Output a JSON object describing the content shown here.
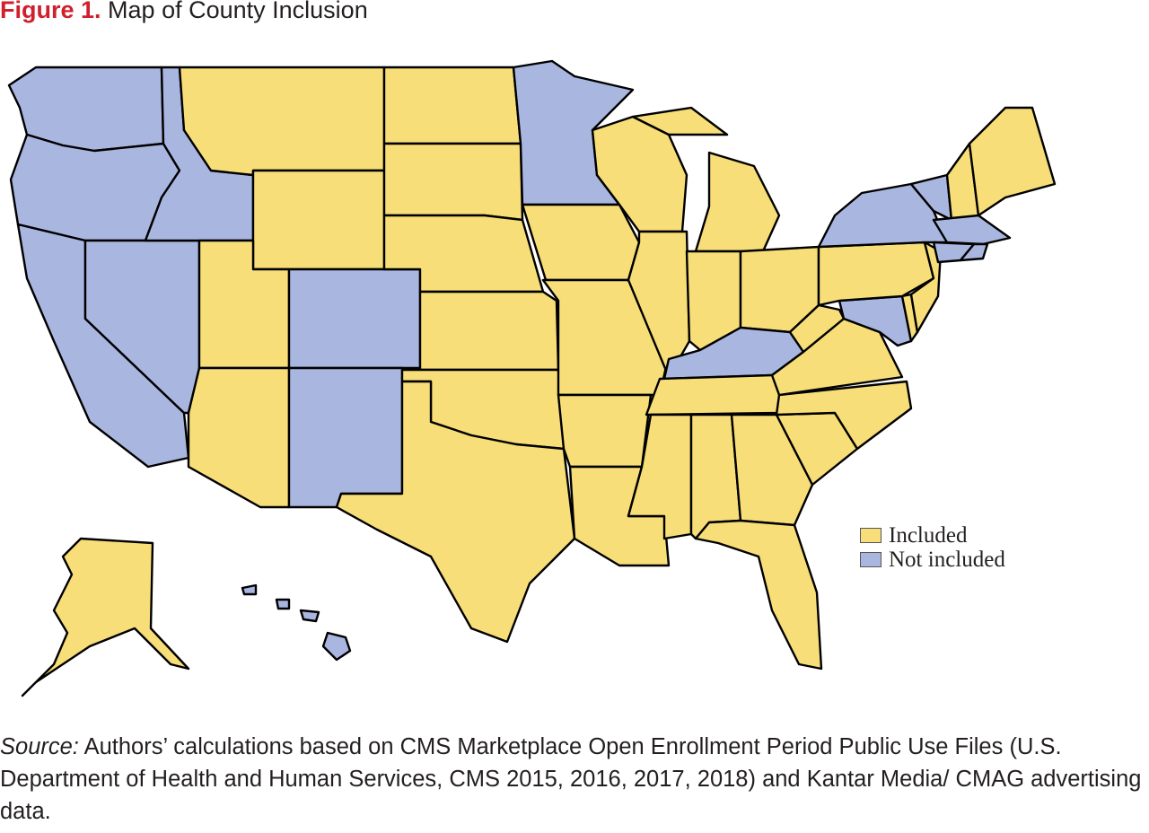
{
  "figure": {
    "number": "Figure 1.",
    "title": "Map of County Inclusion"
  },
  "colors": {
    "included": "#f7de78",
    "not_included": "#a9b6e0",
    "border": "#000000",
    "figure_number": "#d0202e"
  },
  "legend": {
    "included": "Included",
    "not_included": "Not included"
  },
  "map": {
    "states": [
      {
        "name": "WA",
        "status": "not_included"
      },
      {
        "name": "OR",
        "status": "not_included"
      },
      {
        "name": "CA",
        "status": "not_included"
      },
      {
        "name": "NV",
        "status": "not_included"
      },
      {
        "name": "ID",
        "status": "not_included"
      },
      {
        "name": "MT",
        "status": "included"
      },
      {
        "name": "WY",
        "status": "included"
      },
      {
        "name": "UT",
        "status": "included"
      },
      {
        "name": "AZ",
        "status": "included"
      },
      {
        "name": "CO",
        "status": "not_included"
      },
      {
        "name": "NM",
        "status": "not_included"
      },
      {
        "name": "ND",
        "status": "included"
      },
      {
        "name": "SD",
        "status": "included"
      },
      {
        "name": "NE",
        "status": "included"
      },
      {
        "name": "KS",
        "status": "included"
      },
      {
        "name": "OK",
        "status": "included"
      },
      {
        "name": "TX",
        "status": "included"
      },
      {
        "name": "MN",
        "status": "not_included"
      },
      {
        "name": "IA",
        "status": "included"
      },
      {
        "name": "MO",
        "status": "included"
      },
      {
        "name": "AR",
        "status": "included"
      },
      {
        "name": "LA",
        "status": "included"
      },
      {
        "name": "WI",
        "status": "included"
      },
      {
        "name": "IL",
        "status": "included"
      },
      {
        "name": "MI",
        "status": "included"
      },
      {
        "name": "IN",
        "status": "included"
      },
      {
        "name": "OH",
        "status": "included"
      },
      {
        "name": "KY",
        "status": "not_included"
      },
      {
        "name": "TN",
        "status": "included"
      },
      {
        "name": "MS",
        "status": "included"
      },
      {
        "name": "AL",
        "status": "included"
      },
      {
        "name": "GA",
        "status": "included"
      },
      {
        "name": "FL",
        "status": "included"
      },
      {
        "name": "SC",
        "status": "included"
      },
      {
        "name": "NC",
        "status": "included"
      },
      {
        "name": "VA",
        "status": "included"
      },
      {
        "name": "WV",
        "status": "included"
      },
      {
        "name": "MD",
        "status": "not_included"
      },
      {
        "name": "DE",
        "status": "included"
      },
      {
        "name": "PA",
        "status": "included"
      },
      {
        "name": "NJ",
        "status": "included"
      },
      {
        "name": "NY",
        "status": "not_included"
      },
      {
        "name": "VT",
        "status": "not_included"
      },
      {
        "name": "NH",
        "status": "included"
      },
      {
        "name": "ME",
        "status": "included"
      },
      {
        "name": "MA",
        "status": "not_included"
      },
      {
        "name": "CT",
        "status": "not_included"
      },
      {
        "name": "RI",
        "status": "not_included"
      },
      {
        "name": "AK",
        "status": "included"
      },
      {
        "name": "HI",
        "status": "not_included"
      }
    ]
  },
  "source": {
    "label": "Source:",
    "text": "Authors’ calculations based on CMS Marketplace Open Enrollment Period Public Use Files (U.S. Department of Health and Human Services, CMS 2015, 2016, 2017, 2018) and Kantar Media/ CMAG advertising data."
  }
}
